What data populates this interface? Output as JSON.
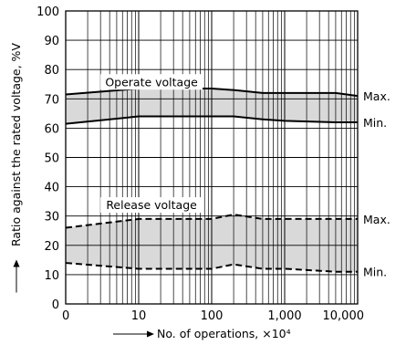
{
  "chart_data": {
    "type": "area",
    "title": "",
    "xlabel": "No. of operations, ×10⁴",
    "ylabel": "Ratio against the rated voltage, %V",
    "x_scale": "log",
    "x_ticks": [
      1,
      10,
      100,
      1000,
      10000
    ],
    "x_tick_labels": [
      "0",
      "10",
      "100",
      "1,000",
      "10,000"
    ],
    "y_ticks": [
      0,
      10,
      20,
      30,
      40,
      50,
      60,
      70,
      80,
      90,
      100
    ],
    "y_tick_labels": [
      "0",
      "10",
      "20",
      "30",
      "40",
      "50",
      "60",
      "70",
      "80",
      "90",
      "100"
    ],
    "xlim": [
      1,
      10000
    ],
    "ylim": [
      0,
      100
    ],
    "grid": true,
    "colors": {
      "band_fill": "#d9d9d9",
      "line": "#000000",
      "grid": "#000000"
    },
    "annotations": [
      {
        "text": "Operate voltage",
        "x": 15,
        "y": 75
      },
      {
        "text": "Release voltage",
        "x": 15,
        "y": 33
      }
    ],
    "bands": [
      {
        "name": "Operate voltage",
        "line_style": "solid",
        "upper": {
          "label": "Max.",
          "points": [
            [
              1,
              71.5
            ],
            [
              10,
              73.5
            ],
            [
              20,
              73.5
            ],
            [
              50,
              73.5
            ],
            [
              100,
              73.5
            ],
            [
              200,
              73
            ],
            [
              500,
              72
            ],
            [
              1000,
              72
            ],
            [
              5000,
              72
            ],
            [
              10000,
              71
            ]
          ]
        },
        "lower": {
          "label": "Min.",
          "points": [
            [
              1,
              61.5
            ],
            [
              10,
              64
            ],
            [
              20,
              64
            ],
            [
              50,
              64
            ],
            [
              100,
              64
            ],
            [
              200,
              64
            ],
            [
              500,
              63
            ],
            [
              1000,
              62.5
            ],
            [
              5000,
              62
            ],
            [
              10000,
              62
            ]
          ]
        }
      },
      {
        "name": "Release voltage",
        "line_style": "dashed",
        "upper": {
          "label": "Max.",
          "points": [
            [
              1,
              26
            ],
            [
              10,
              29
            ],
            [
              20,
              29
            ],
            [
              50,
              29
            ],
            [
              100,
              29
            ],
            [
              200,
              30.5
            ],
            [
              500,
              29
            ],
            [
              1000,
              29
            ],
            [
              5000,
              29
            ],
            [
              10000,
              29
            ]
          ]
        },
        "lower": {
          "label": "Min.",
          "points": [
            [
              1,
              14
            ],
            [
              10,
              12
            ],
            [
              20,
              12
            ],
            [
              50,
              12
            ],
            [
              100,
              12
            ],
            [
              200,
              13.5
            ],
            [
              500,
              12
            ],
            [
              1000,
              12
            ],
            [
              5000,
              11
            ],
            [
              10000,
              11
            ]
          ]
        }
      }
    ]
  }
}
